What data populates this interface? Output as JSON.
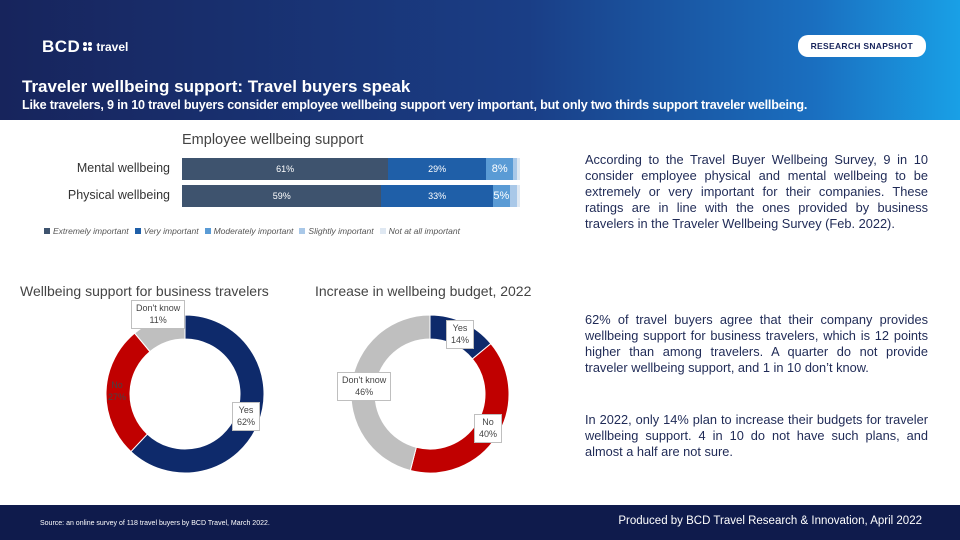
{
  "header": {
    "logo_bcd": "BCD",
    "logo_travel": "travel",
    "badge": "RESEARCH SNAPSHOT",
    "title": "Traveler wellbeing support: Travel buyers speak",
    "subtitle": "Like travelers, 9 in 10 travel buyers consider employee wellbeing support very important, but only two thirds support traveler wellbeing."
  },
  "colors": {
    "extremely": "#3e536e",
    "very": "#1f5fa8",
    "moderately": "#5a9bd5",
    "slightly": "#a9c8e8",
    "not_at_all": "#dfe8f2",
    "navy": "#0e2a6b",
    "red": "#c00000",
    "gray": "#bfbfbf"
  },
  "chart_data": [
    {
      "type": "bar",
      "orientation": "horizontal-stacked",
      "title": "Employee wellbeing support",
      "categories": [
        "Mental wellbeing",
        "Physical wellbeing"
      ],
      "series": [
        {
          "name": "Extremely important",
          "values": [
            61,
            59
          ],
          "labels": [
            "61%",
            "59%"
          ]
        },
        {
          "name": "Very important",
          "values": [
            29,
            33
          ],
          "labels": [
            "29%",
            "33%"
          ]
        },
        {
          "name": "Moderately important",
          "values": [
            8,
            5
          ],
          "labels": [
            "8%",
            "5%"
          ]
        },
        {
          "name": "Slightly important",
          "values": [
            1,
            2
          ],
          "labels": [
            "",
            ""
          ]
        },
        {
          "name": "Not at all important",
          "values": [
            1,
            1
          ],
          "labels": [
            "",
            ""
          ]
        }
      ],
      "legend_position": "bottom"
    },
    {
      "type": "pie",
      "variant": "donut",
      "title": "Wellbeing support for business travelers",
      "slices": [
        {
          "label": "Yes",
          "value": 62,
          "text": "62%"
        },
        {
          "label": "No",
          "value": 27,
          "text": "27%"
        },
        {
          "label": "Don't know",
          "value": 11,
          "text": "11%"
        }
      ]
    },
    {
      "type": "pie",
      "variant": "donut",
      "title": "Increase in wellbeing budget, 2022",
      "slices": [
        {
          "label": "Yes",
          "value": 14,
          "text": "14%"
        },
        {
          "label": "No",
          "value": 40,
          "text": "40%"
        },
        {
          "label": "Don't know",
          "value": 46,
          "text": "46%"
        }
      ]
    }
  ],
  "text": {
    "para1": "According to the Travel Buyer Wellbeing Survey, 9 in 10 consider employee physical and mental wellbeing to be extremely or very important for their companies. These ratings are in line with the ones provided by business travelers in the Traveler Wellbeing Survey (Feb. 2022).",
    "para2": "62% of travel buyers agree that their company provides wellbeing support for business travelers, which is 12 points higher than among travelers. A quarter do not provide traveler wellbeing support, and 1 in 10 don’t know.",
    "para3": "In 2022, only 14% plan to increase their budgets for traveler wellbeing support. 4 in 10 do not have such plans, and almost a half are not sure."
  },
  "footer": {
    "source": "Source: an online survey of 118 travel buyers by BCD Travel, March 2022.",
    "produced": "Produced by BCD Travel Research & Innovation, April 2022"
  }
}
